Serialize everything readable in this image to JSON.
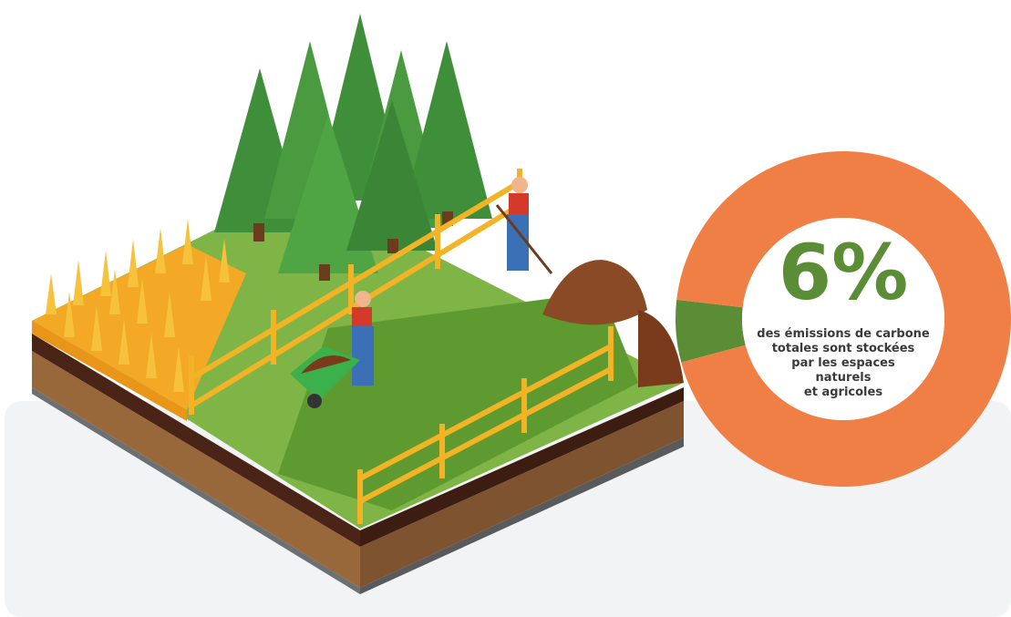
{
  "chart_data": {
    "type": "donut",
    "categories": [
      null,
      null
    ],
    "values": [
      6,
      94
    ],
    "value_labels": [
      "6%",
      null
    ],
    "colors": [
      "#5b8c36",
      "#f07f45"
    ],
    "annotation": [
      "des émissions de carbone",
      "totales sont stockées",
      "par les espaces",
      "naturels",
      "et agricoles"
    ]
  }
}
